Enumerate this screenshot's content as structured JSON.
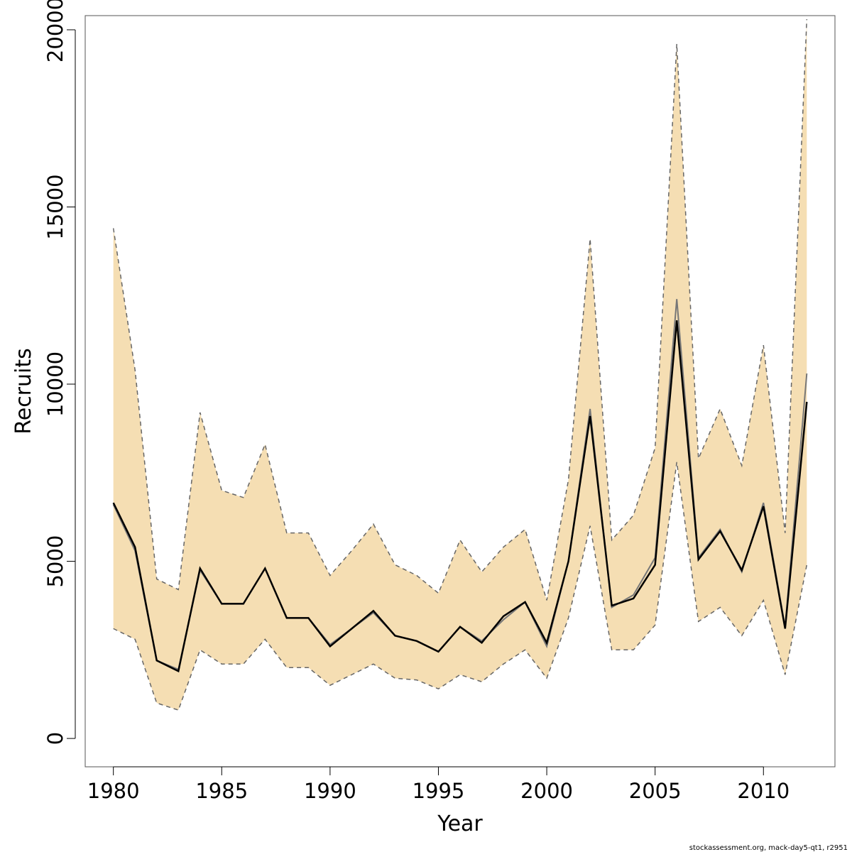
{
  "chart_data": {
    "type": "line",
    "xlabel": "Year",
    "ylabel": "Recruits",
    "xlim": [
      1978.7,
      2013.3
    ],
    "ylim": [
      -800,
      20400
    ],
    "xticks": [
      1980,
      1985,
      1990,
      1995,
      2000,
      2005,
      2010
    ],
    "yticks": [
      0,
      5000,
      10000,
      15000,
      20000
    ],
    "grid": false,
    "x": [
      1980,
      1981,
      1982,
      1983,
      1984,
      1985,
      1986,
      1987,
      1988,
      1989,
      1990,
      1991,
      1992,
      1993,
      1994,
      1995,
      1996,
      1997,
      1998,
      1999,
      2000,
      2001,
      2002,
      2003,
      2004,
      2005,
      2006,
      2007,
      2008,
      2009,
      2010,
      2011,
      2012
    ],
    "band": {
      "upper": [
        14400,
        10400,
        4500,
        4200,
        9200,
        7000,
        6800,
        8300,
        5800,
        5800,
        4600,
        5300,
        6050,
        4900,
        4600,
        4100,
        5600,
        4700,
        5400,
        5900,
        3900,
        7300,
        14100,
        5600,
        6300,
        8200,
        19600,
        7900,
        9300,
        7700,
        11100,
        5800,
        20300
      ],
      "lower": [
        3100,
        2800,
        1000,
        800,
        2500,
        2100,
        2100,
        2800,
        2000,
        2000,
        1500,
        1800,
        2100,
        1700,
        1650,
        1400,
        1800,
        1600,
        2100,
        2500,
        1700,
        3400,
        6000,
        2500,
        2500,
        3200,
        7800,
        3300,
        3700,
        2900,
        3900,
        1800,
        4900
      ]
    },
    "series": [
      {
        "values": [
          6650,
          5400,
          2200,
          1900,
          4800,
          3800,
          3800,
          4800,
          3400,
          3400,
          2600,
          3100,
          3600,
          2900,
          2750,
          2450,
          3150,
          2700,
          3450,
          3850,
          2700,
          5000,
          9100,
          3750,
          3950,
          4900,
          11800,
          5050,
          5850,
          4750,
          6550,
          3100,
          9500
        ]
      },
      {
        "values": [
          6600,
          5300,
          2200,
          1950,
          4750,
          3800,
          3800,
          4800,
          3400,
          3400,
          2650,
          3100,
          3550,
          2900,
          2750,
          2450,
          3150,
          2750,
          3350,
          3850,
          2600,
          5000,
          9300,
          3700,
          4050,
          5100,
          12400,
          5100,
          5900,
          4700,
          6650,
          3150,
          10300
        ]
      }
    ],
    "colors": {
      "band": "#F5DEB3",
      "band_edge": "#666666",
      "main_line": "#000000",
      "alt_line": "#777777"
    }
  },
  "footer": "stockassessment.org, mack-day5-qt1, r2951"
}
